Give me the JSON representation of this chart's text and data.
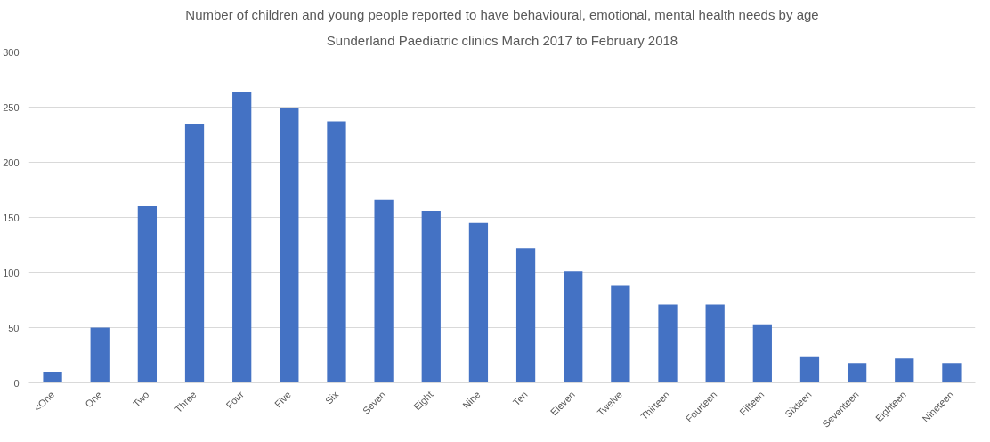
{
  "chart_data": {
    "type": "bar",
    "title": "Number of children and young people reported to have behavioural, emotional, mental health needs by age",
    "subtitle": "Sunderland Paediatric clinics March 2017 to February 2018",
    "categories": [
      "<One",
      "One",
      "Two",
      "Three",
      "Four",
      "Five",
      "Six",
      "Seven",
      "Eight",
      "Nine",
      "Ten",
      "Eleven",
      "Twelve",
      "Thirteen",
      "Fourteen",
      "Fifteen",
      "Sixteen",
      "Seventeen",
      "Eighteen",
      "Nineteen"
    ],
    "values": [
      10,
      50,
      160,
      235,
      264,
      249,
      237,
      166,
      156,
      145,
      122,
      101,
      88,
      71,
      71,
      53,
      24,
      18,
      22,
      18
    ],
    "color": "#4472c4",
    "ylim": [
      0,
      300
    ],
    "yticks": [
      0,
      50,
      100,
      150,
      200,
      250,
      300
    ],
    "grid": "y"
  }
}
